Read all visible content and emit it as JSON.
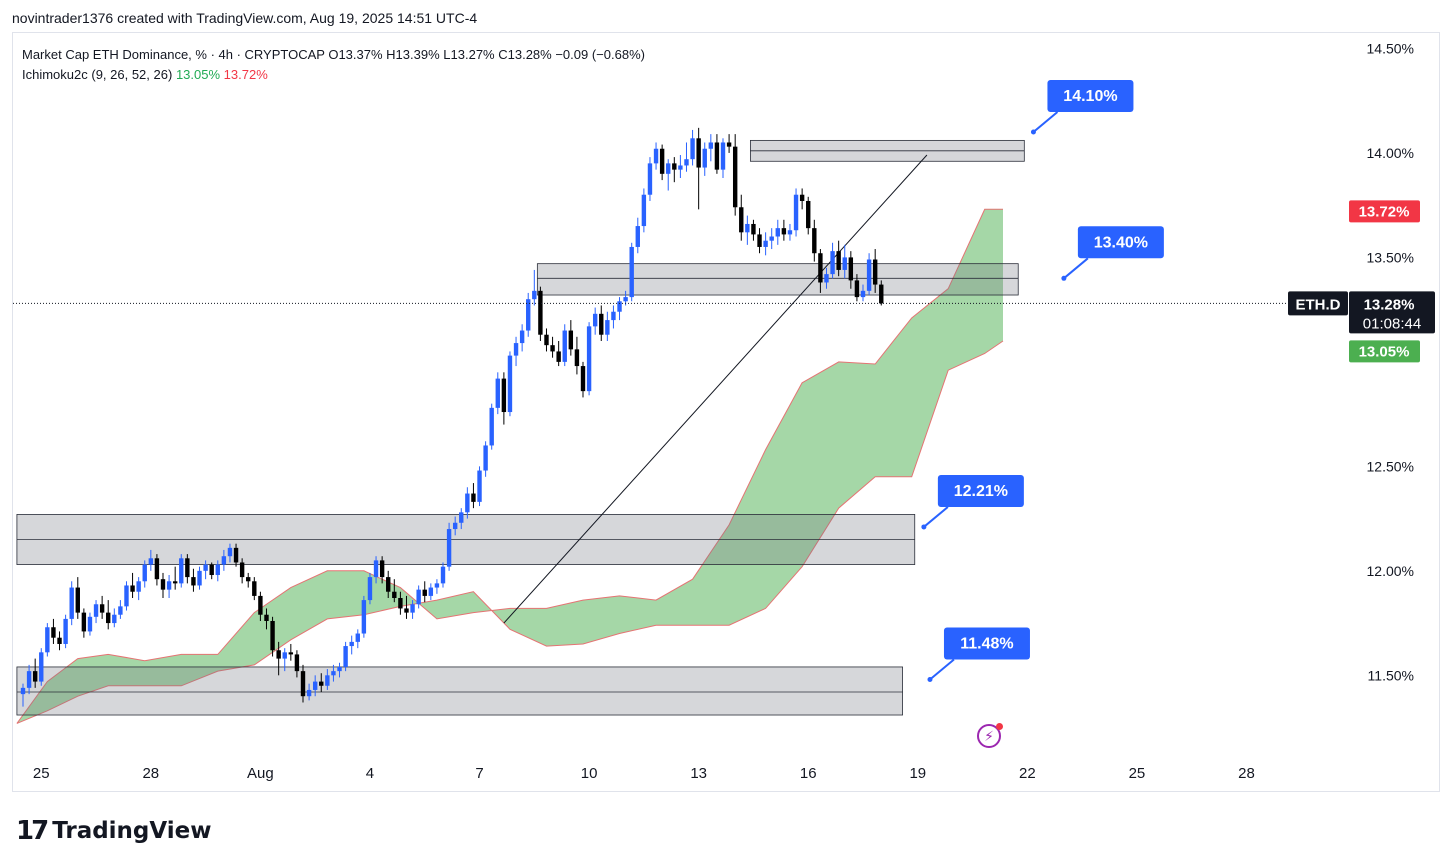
{
  "header": {
    "credit": "novintrader1376 created with TradingView.com, Aug 19, 2025 14:51 UTC-4"
  },
  "legend": {
    "symbol_title": "Market Cap ETH Dominance, % · 4h · CRYPTOCAP",
    "open": "O13.37%",
    "high": "H13.39%",
    "low": "L13.27%",
    "close": "C13.28%",
    "change": "−0.09 (−0.68%)",
    "indicator": "Ichimoku2c (9, 26, 52, 26)",
    "ind_value_1": "13.05%",
    "ind_value_2": "13.72%"
  },
  "footer": {
    "logo_mark": "17",
    "logo_text": "TradingView"
  },
  "chart_data": {
    "type": "candlestick",
    "title": "Market Cap ETH Dominance, % · 4h · CRYPTOCAP",
    "symbol": "ETH.D",
    "interval": "4h",
    "ylim": [
      11.2,
      14.55
    ],
    "y_ticks": [
      "14.50%",
      "14.00%",
      "13.50%",
      "12.50%",
      "12.00%",
      "11.50%"
    ],
    "y_tick_values": [
      14.5,
      14.0,
      13.5,
      12.5,
      12.0,
      11.5
    ],
    "x_ticks": [
      "25",
      "28",
      "Aug",
      "4",
      "7",
      "10",
      "13",
      "16",
      "19",
      "22",
      "25",
      "28"
    ],
    "x_tick_index": [
      3,
      21,
      39,
      57,
      75,
      93,
      111,
      129,
      147,
      165,
      183,
      201
    ],
    "last_price": 13.28,
    "price_labels": {
      "symbol": "ETH.D",
      "last": "13.28%",
      "countdown": "01:08:44",
      "cloud_top": "13.72%",
      "cloud_top_value": 13.72,
      "cloud_bottom": "13.05%",
      "cloud_bottom_value": 13.05
    },
    "zones": [
      {
        "name": "zone-14-00",
        "from_index": 119.5,
        "to_index": 164.5,
        "y_low": 13.96,
        "y_high": 14.06,
        "mid": 14.01
      },
      {
        "name": "zone-13-40",
        "from_index": 84.5,
        "to_index": 163.5,
        "y_low": 13.32,
        "y_high": 13.47,
        "mid": 13.4
      },
      {
        "name": "zone-12-21",
        "from_index": -1,
        "to_index": 146.5,
        "y_low": 12.03,
        "y_high": 12.27,
        "mid": 12.15
      },
      {
        "name": "zone-11-48",
        "from_index": -1,
        "to_index": 144.5,
        "y_low": 11.31,
        "y_high": 11.54,
        "mid": 11.42
      }
    ],
    "annotations": [
      {
        "text": "14.10%",
        "value": 14.1,
        "index": 166
      },
      {
        "text": "13.40%",
        "value": 13.4,
        "index": 171
      },
      {
        "text": "12.21%",
        "value": 12.21,
        "index": 148
      },
      {
        "text": "11.48%",
        "value": 11.48,
        "index": 149
      }
    ],
    "trendline": {
      "from_index": 79,
      "from_value": 11.75,
      "to_index": 148.5,
      "to_value": 13.99
    },
    "cloud": {
      "x": [
        -1,
        4,
        9,
        14,
        20,
        26,
        32,
        38,
        44,
        50,
        56,
        62,
        68,
        74,
        80,
        86,
        92,
        98,
        104,
        110,
        116,
        122,
        128,
        134,
        140,
        146,
        152,
        158,
        161
      ],
      "span_a": [
        11.27,
        11.47,
        11.58,
        11.6,
        11.57,
        11.6,
        11.6,
        11.8,
        11.92,
        12.0,
        12.0,
        11.92,
        11.77,
        11.8,
        11.82,
        11.82,
        11.86,
        11.88,
        11.86,
        11.96,
        12.22,
        12.58,
        12.9,
        13.0,
        12.99,
        13.21,
        13.35,
        13.73,
        13.73
      ],
      "span_b": [
        11.27,
        11.33,
        11.4,
        11.45,
        11.45,
        11.45,
        11.52,
        11.55,
        11.67,
        11.77,
        11.79,
        11.83,
        11.86,
        11.9,
        11.72,
        11.64,
        11.65,
        11.7,
        11.74,
        11.74,
        11.74,
        11.82,
        12.02,
        12.3,
        12.45,
        12.45,
        12.96,
        13.04,
        13.1
      ]
    },
    "candles": [
      [
        11.41,
        11.46,
        11.35,
        11.44
      ],
      [
        11.44,
        11.55,
        11.41,
        11.52
      ],
      [
        11.52,
        11.58,
        11.44,
        11.47
      ],
      [
        11.47,
        11.63,
        11.45,
        11.61
      ],
      [
        11.61,
        11.75,
        11.59,
        11.73
      ],
      [
        11.73,
        11.77,
        11.65,
        11.68
      ],
      [
        11.68,
        11.71,
        11.62,
        11.65
      ],
      [
        11.65,
        11.79,
        11.63,
        11.77
      ],
      [
        11.77,
        11.95,
        11.74,
        11.92
      ],
      [
        11.92,
        11.97,
        11.77,
        11.8
      ],
      [
        11.8,
        11.82,
        11.68,
        11.71
      ],
      [
        11.71,
        11.8,
        11.69,
        11.78
      ],
      [
        11.78,
        11.86,
        11.75,
        11.84
      ],
      [
        11.84,
        11.88,
        11.77,
        11.8
      ],
      [
        11.8,
        11.86,
        11.72,
        11.75
      ],
      [
        11.75,
        11.82,
        11.73,
        11.79
      ],
      [
        11.79,
        11.86,
        11.77,
        11.83
      ],
      [
        11.83,
        11.95,
        11.81,
        11.93
      ],
      [
        11.93,
        11.99,
        11.87,
        11.9
      ],
      [
        11.9,
        11.97,
        11.86,
        11.95
      ],
      [
        11.95,
        12.05,
        11.92,
        12.03
      ],
      [
        12.03,
        12.1,
        12.0,
        12.06
      ],
      [
        12.06,
        12.08,
        11.93,
        11.96
      ],
      [
        11.96,
        11.99,
        11.87,
        11.91
      ],
      [
        11.91,
        11.98,
        11.87,
        11.95
      ],
      [
        11.95,
        12.02,
        11.91,
        11.94
      ],
      [
        11.94,
        12.08,
        11.92,
        12.06
      ],
      [
        12.06,
        12.08,
        11.94,
        11.97
      ],
      [
        11.97,
        12.01,
        11.9,
        11.93
      ],
      [
        11.93,
        12.02,
        11.91,
        12.0
      ],
      [
        12.0,
        12.05,
        11.96,
        12.03
      ],
      [
        12.03,
        12.04,
        11.96,
        11.98
      ],
      [
        11.98,
        12.05,
        11.95,
        12.03
      ],
      [
        12.03,
        12.1,
        12.0,
        12.07
      ],
      [
        12.07,
        12.13,
        12.04,
        12.11
      ],
      [
        12.11,
        12.13,
        12.02,
        12.04
      ],
      [
        12.04,
        12.06,
        11.94,
        11.97
      ],
      [
        11.97,
        11.99,
        11.92,
        11.95
      ],
      [
        11.95,
        11.97,
        11.86,
        11.88
      ],
      [
        11.88,
        11.9,
        11.76,
        11.79
      ],
      [
        11.79,
        11.82,
        11.72,
        11.76
      ],
      [
        11.76,
        11.78,
        11.59,
        11.62
      ],
      [
        11.62,
        11.66,
        11.5,
        11.58
      ],
      [
        11.58,
        11.63,
        11.52,
        11.61
      ],
      [
        11.61,
        11.65,
        11.57,
        11.6
      ],
      [
        11.6,
        11.62,
        11.49,
        11.52
      ],
      [
        11.52,
        11.55,
        11.37,
        11.4
      ],
      [
        11.4,
        11.46,
        11.38,
        11.43
      ],
      [
        11.43,
        11.5,
        11.4,
        11.47
      ],
      [
        11.47,
        11.51,
        11.42,
        11.45
      ],
      [
        11.45,
        11.53,
        11.43,
        11.5
      ],
      [
        11.5,
        11.55,
        11.47,
        11.52
      ],
      [
        11.52,
        11.56,
        11.49,
        11.54
      ],
      [
        11.54,
        11.66,
        11.52,
        11.64
      ],
      [
        11.64,
        11.69,
        11.6,
        11.66
      ],
      [
        11.66,
        11.72,
        11.63,
        11.7
      ],
      [
        11.7,
        11.88,
        11.68,
        11.86
      ],
      [
        11.86,
        11.99,
        11.84,
        11.97
      ],
      [
        11.97,
        12.07,
        11.94,
        12.05
      ],
      [
        12.05,
        12.07,
        11.94,
        11.97
      ],
      [
        11.97,
        12.0,
        11.87,
        11.9
      ],
      [
        11.9,
        11.96,
        11.85,
        11.87
      ],
      [
        11.87,
        11.9,
        11.79,
        11.82
      ],
      [
        11.82,
        11.88,
        11.77,
        11.8
      ],
      [
        11.8,
        11.86,
        11.77,
        11.84
      ],
      [
        11.84,
        11.93,
        11.82,
        11.91
      ],
      [
        11.91,
        11.95,
        11.85,
        11.88
      ],
      [
        11.88,
        11.94,
        11.86,
        11.92
      ],
      [
        11.92,
        11.96,
        11.89,
        11.94
      ],
      [
        11.94,
        12.04,
        11.92,
        12.02
      ],
      [
        12.02,
        12.23,
        12.0,
        12.2
      ],
      [
        12.2,
        12.26,
        12.17,
        12.23
      ],
      [
        12.23,
        12.3,
        12.2,
        12.28
      ],
      [
        12.28,
        12.4,
        12.25,
        12.37
      ],
      [
        12.37,
        12.42,
        12.3,
        12.33
      ],
      [
        12.33,
        12.5,
        12.31,
        12.48
      ],
      [
        12.48,
        12.62,
        12.45,
        12.6
      ],
      [
        12.6,
        12.8,
        12.58,
        12.78
      ],
      [
        12.78,
        12.95,
        12.75,
        12.92
      ],
      [
        12.92,
        12.95,
        12.7,
        12.76
      ],
      [
        12.76,
        13.05,
        12.74,
        13.03
      ],
      [
        13.03,
        13.12,
        12.98,
        13.09
      ],
      [
        13.09,
        13.18,
        13.05,
        13.15
      ],
      [
        13.15,
        13.33,
        13.12,
        13.3
      ],
      [
        13.3,
        13.44,
        13.27,
        13.34
      ],
      [
        13.34,
        13.36,
        13.1,
        13.13
      ],
      [
        13.13,
        13.16,
        13.05,
        13.08
      ],
      [
        13.08,
        13.12,
        13.02,
        13.05
      ],
      [
        13.05,
        13.1,
        12.98,
        13.0
      ],
      [
        13.0,
        13.18,
        12.98,
        13.15
      ],
      [
        13.15,
        13.2,
        13.03,
        13.06
      ],
      [
        13.06,
        13.12,
        12.94,
        12.98
      ],
      [
        12.98,
        13.0,
        12.83,
        12.86
      ],
      [
        12.86,
        13.19,
        12.84,
        13.17
      ],
      [
        13.17,
        13.26,
        13.13,
        13.23
      ],
      [
        13.23,
        13.27,
        13.1,
        13.13
      ],
      [
        13.13,
        13.24,
        13.1,
        13.2
      ],
      [
        13.2,
        13.27,
        13.16,
        13.24
      ],
      [
        13.24,
        13.31,
        13.2,
        13.29
      ],
      [
        13.29,
        13.34,
        13.27,
        13.31
      ],
      [
        13.31,
        13.57,
        13.29,
        13.55
      ],
      [
        13.55,
        13.69,
        13.52,
        13.65
      ],
      [
        13.65,
        13.83,
        13.62,
        13.8
      ],
      [
        13.8,
        13.98,
        13.77,
        13.95
      ],
      [
        13.95,
        14.05,
        13.92,
        14.02
      ],
      [
        14.02,
        14.04,
        13.87,
        13.9
      ],
      [
        13.9,
        13.97,
        13.82,
        13.95
      ],
      [
        13.95,
        13.98,
        13.86,
        13.92
      ],
      [
        13.92,
        13.99,
        13.88,
        13.94
      ],
      [
        13.94,
        14.05,
        13.91,
        13.97
      ],
      [
        13.97,
        14.11,
        13.94,
        14.07
      ],
      [
        14.07,
        14.12,
        13.73,
        13.93
      ],
      [
        13.93,
        14.05,
        13.89,
        14.02
      ],
      [
        14.02,
        14.09,
        13.96,
        14.05
      ],
      [
        14.05,
        14.09,
        13.9,
        13.92
      ],
      [
        13.92,
        14.07,
        13.88,
        14.05
      ],
      [
        14.05,
        14.09,
        14.0,
        14.03
      ],
      [
        14.03,
        14.09,
        13.7,
        13.74
      ],
      [
        13.74,
        13.8,
        13.58,
        13.62
      ],
      [
        13.62,
        13.7,
        13.56,
        13.66
      ],
      [
        13.66,
        13.68,
        13.58,
        13.61
      ],
      [
        13.61,
        13.64,
        13.52,
        13.55
      ],
      [
        13.55,
        13.62,
        13.51,
        13.58
      ],
      [
        13.58,
        13.64,
        13.54,
        13.6
      ],
      [
        13.6,
        13.68,
        13.56,
        13.64
      ],
      [
        13.64,
        13.68,
        13.58,
        13.61
      ],
      [
        13.61,
        13.66,
        13.58,
        13.63
      ],
      [
        13.63,
        13.83,
        13.6,
        13.8
      ],
      [
        13.8,
        13.83,
        13.73,
        13.77
      ],
      [
        13.77,
        13.79,
        13.61,
        13.64
      ],
      [
        13.64,
        13.68,
        13.48,
        13.52
      ],
      [
        13.52,
        13.54,
        13.33,
        13.38
      ],
      [
        13.38,
        13.45,
        13.35,
        13.42
      ],
      [
        13.42,
        13.57,
        13.4,
        13.53
      ],
      [
        13.53,
        13.58,
        13.41,
        13.44
      ],
      [
        13.44,
        13.56,
        13.4,
        13.5
      ],
      [
        13.5,
        13.53,
        13.35,
        13.39
      ],
      [
        13.39,
        13.42,
        13.29,
        13.31
      ],
      [
        13.31,
        13.37,
        13.29,
        13.34
      ],
      [
        13.34,
        13.52,
        13.32,
        13.49
      ],
      [
        13.49,
        13.54,
        13.33,
        13.37
      ],
      [
        13.37,
        13.39,
        13.27,
        13.28
      ]
    ]
  }
}
